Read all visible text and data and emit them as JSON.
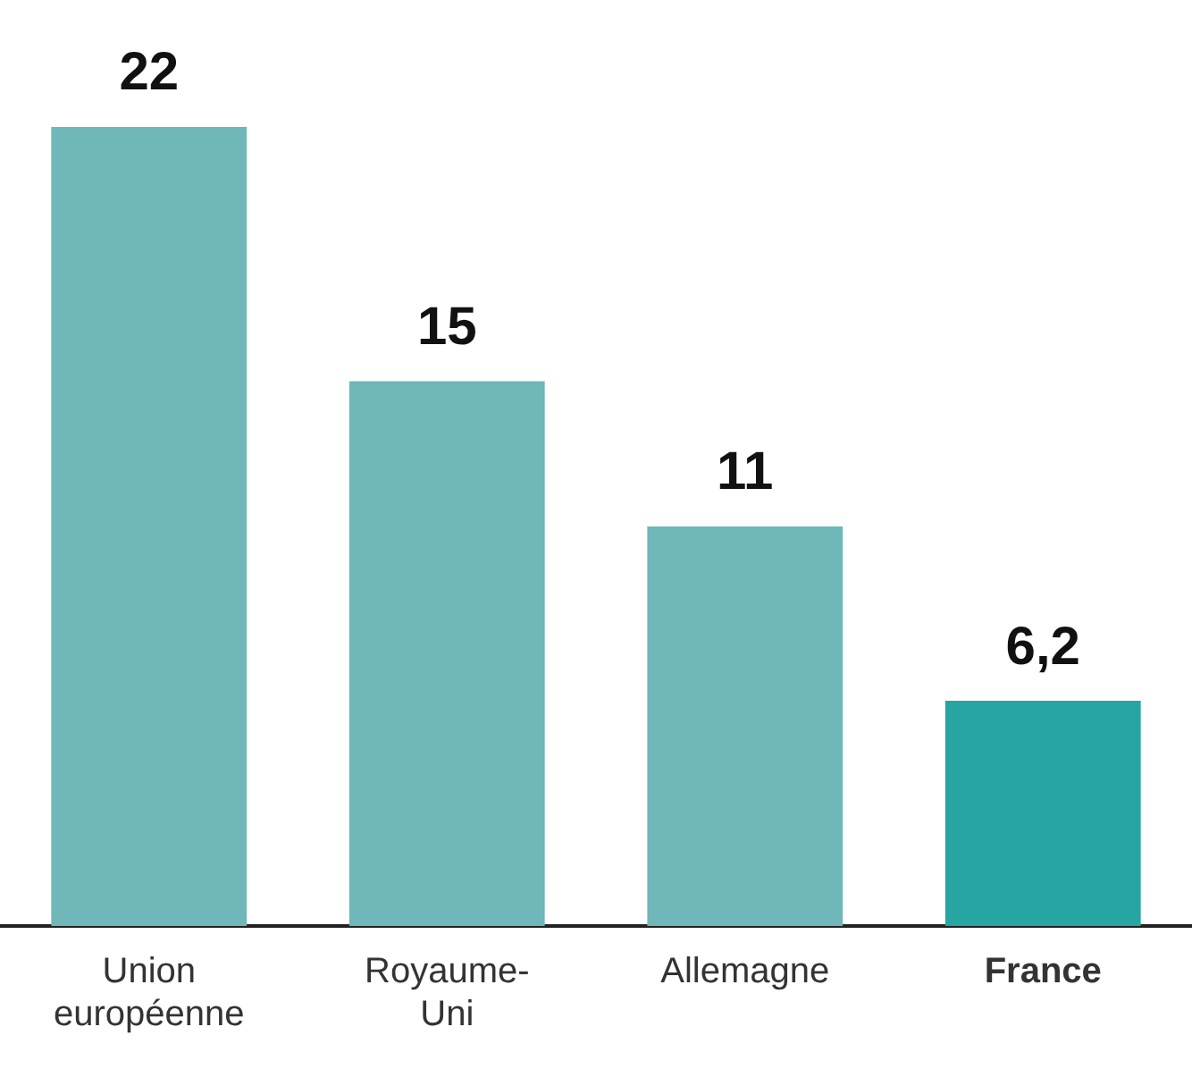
{
  "chart_data": {
    "type": "bar",
    "categories": [
      "Union européenne",
      "Royaume-Uni",
      "Allemagne",
      "France"
    ],
    "values": [
      22,
      15,
      11,
      6.2
    ],
    "value_labels": [
      "22",
      "15",
      "11",
      "6,2"
    ],
    "colors": [
      "#6fb7b9",
      "#6fb7b9",
      "#6fb7b9",
      "#27a5a2"
    ],
    "grid": false,
    "legend": false
  }
}
